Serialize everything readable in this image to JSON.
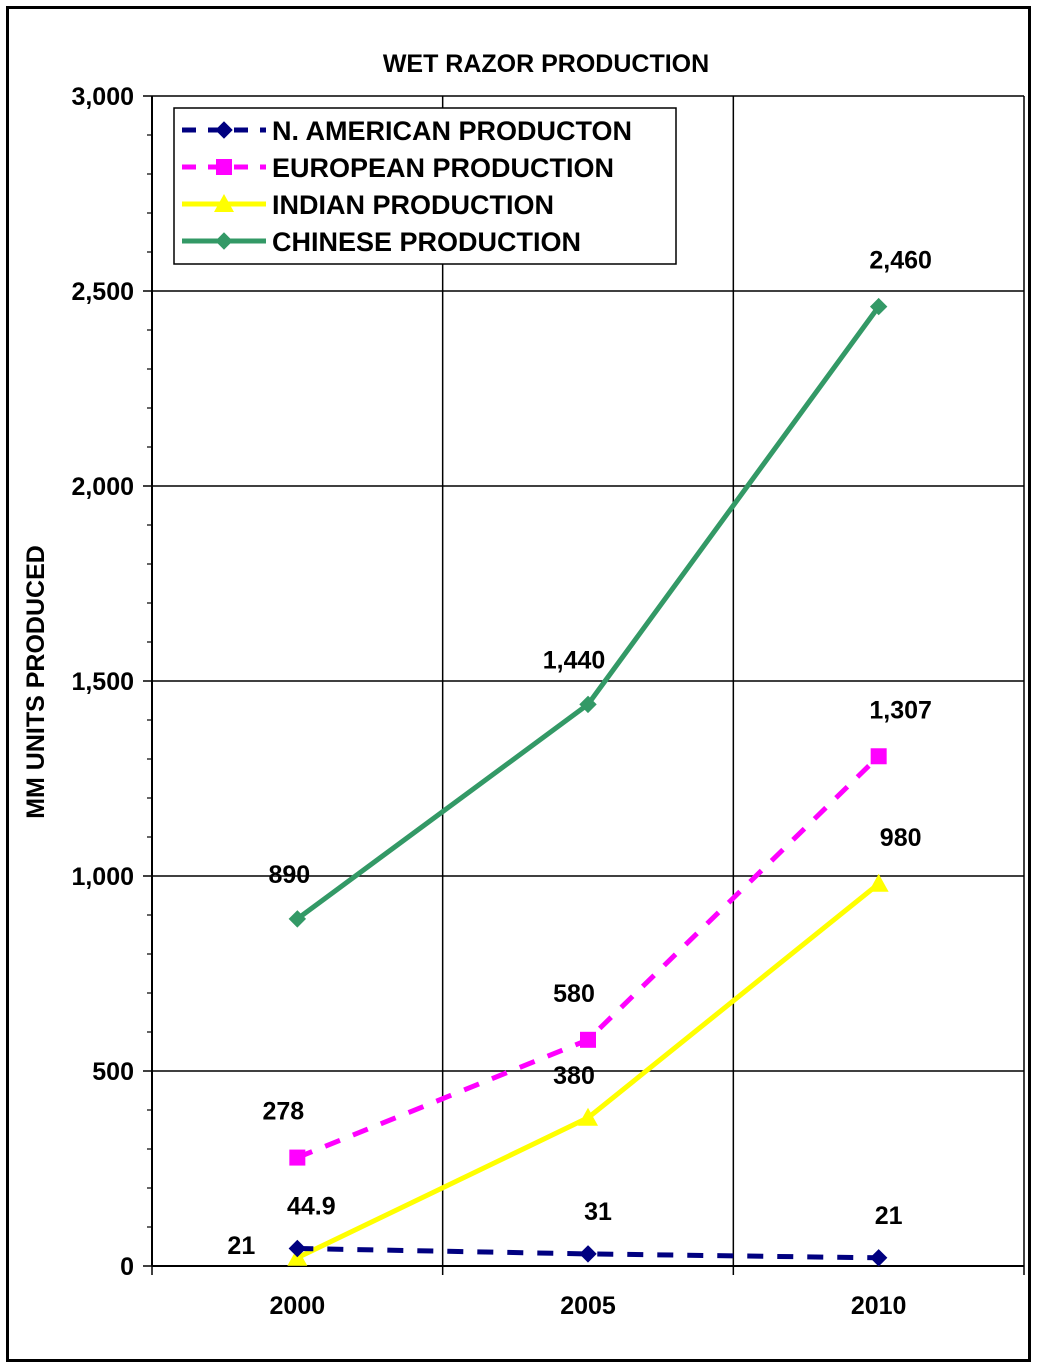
{
  "chart_data": {
    "type": "line",
    "title": "WET RAZOR PRODUCTION",
    "xlabel": "",
    "ylabel": "MM UNITS PRODUCED",
    "categories": [
      "2000",
      "2005",
      "2010"
    ],
    "ylim": [
      0,
      3000
    ],
    "yticks": [
      "0",
      "500",
      "1,000",
      "1,500",
      "2,000",
      "2,500",
      "3,000"
    ],
    "grid": true,
    "legend_position": "top-left",
    "series": [
      {
        "name": "N. AMERICAN PRODUCTON",
        "values": [
          44.9,
          31,
          21
        ],
        "labels": [
          "44.9",
          "31",
          "21"
        ],
        "color": "#000080",
        "marker": "diamond",
        "dash": "dashed"
      },
      {
        "name": "EUROPEAN PRODUCTION",
        "values": [
          278,
          580,
          1307
        ],
        "labels": [
          "278",
          "580",
          "1,307"
        ],
        "color": "#ff00ff",
        "marker": "square",
        "dash": "dashed"
      },
      {
        "name": "INDIAN PRODUCTION",
        "values": [
          21,
          380,
          980
        ],
        "labels": [
          "21",
          "380",
          "980"
        ],
        "color": "#ffff00",
        "marker": "triangle",
        "dash": "solid"
      },
      {
        "name": "CHINESE PRODUCTION",
        "values": [
          890,
          1440,
          2460
        ],
        "labels": [
          "890",
          "1,440",
          "2,460"
        ],
        "color": "#339966",
        "marker": "diamond",
        "dash": "solid"
      }
    ]
  }
}
